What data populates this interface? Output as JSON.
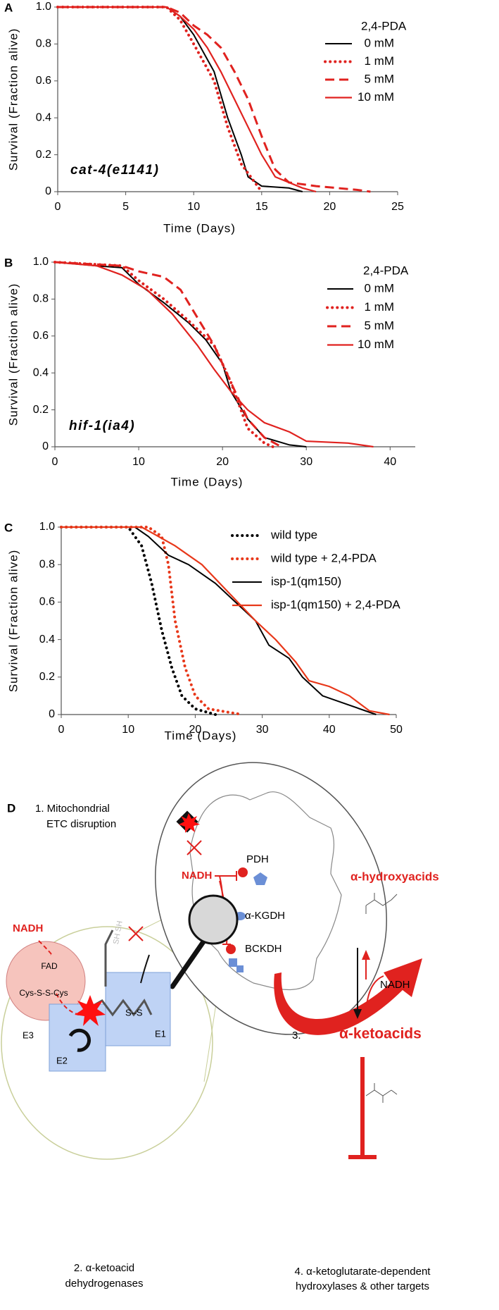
{
  "chart_data": [
    {
      "type": "line",
      "panel_label": "A",
      "x_label": "Time (Days)",
      "y_label": "Survival (Fraction alive)",
      "annotation": "cat-4(e1141)",
      "legend_title": "2,4-PDA",
      "xlim": [
        0,
        25
      ],
      "xticks": [
        0,
        5,
        10,
        15,
        20,
        25
      ],
      "ylim": [
        0,
        1
      ],
      "yticks": [
        0,
        0.2,
        0.4,
        0.6,
        0.8,
        {
          "value": 1,
          "label": "1.0"
        }
      ],
      "series": [
        {
          "name": "0 mM",
          "color": "#000000",
          "linestyle": "solid",
          "x": [
            0,
            8,
            9,
            10,
            11.5,
            12.5,
            13.5,
            14,
            15,
            17,
            18
          ],
          "values": [
            1,
            1,
            0.95,
            0.85,
            0.65,
            0.4,
            0.2,
            0.08,
            0.03,
            0.02,
            0
          ]
        },
        {
          "name": "1 mM",
          "color": "#e0221f",
          "linestyle": "dotted",
          "x": [
            0,
            8,
            9,
            10,
            11.5,
            12.5,
            13.5,
            14.5,
            15
          ],
          "values": [
            1,
            1,
            0.93,
            0.8,
            0.6,
            0.35,
            0.15,
            0.05,
            0
          ]
        },
        {
          "name": "5 mM",
          "color": "#e0221f",
          "linestyle": "dashed",
          "x": [
            0,
            8,
            9,
            10,
            11,
            12,
            13,
            14,
            15,
            16,
            17,
            19,
            22,
            23
          ],
          "values": [
            1,
            1,
            0.97,
            0.9,
            0.85,
            0.78,
            0.65,
            0.5,
            0.3,
            0.12,
            0.05,
            0.03,
            0.01,
            0
          ]
        },
        {
          "name": "10 mM",
          "color": "#e0221f",
          "linestyle": "solid",
          "x": [
            0,
            8,
            9,
            10,
            11,
            12,
            13,
            14,
            15,
            16,
            18,
            19
          ],
          "values": [
            1,
            1,
            0.95,
            0.88,
            0.78,
            0.65,
            0.5,
            0.35,
            0.2,
            0.08,
            0.02,
            0
          ]
        }
      ]
    },
    {
      "type": "line",
      "panel_label": "B",
      "x_label": "Time (Days)",
      "y_label": "Survival (Fraction alive)",
      "annotation": "hif-1(ia4)",
      "legend_title": "2,4-PDA",
      "xlim": [
        0,
        43
      ],
      "xticks": [
        0,
        10,
        20,
        30,
        40
      ],
      "ylim": [
        0,
        1
      ],
      "yticks": [
        0,
        0.2,
        0.4,
        0.6,
        0.8,
        {
          "value": 1,
          "label": "1.0"
        }
      ],
      "series": [
        {
          "name": "0 mM",
          "color": "#000000",
          "linestyle": "solid",
          "x": [
            0,
            5,
            8,
            10,
            13,
            16,
            18,
            20,
            21,
            23,
            25,
            28,
            30
          ],
          "values": [
            1,
            0.98,
            0.97,
            0.88,
            0.78,
            0.67,
            0.58,
            0.45,
            0.3,
            0.15,
            0.05,
            0.01,
            0
          ]
        },
        {
          "name": "1 mM",
          "color": "#e0221f",
          "linestyle": "dotted",
          "x": [
            0,
            8,
            10,
            13,
            16,
            19,
            21,
            23,
            25,
            26
          ],
          "values": [
            1,
            0.98,
            0.9,
            0.8,
            0.68,
            0.55,
            0.35,
            0.1,
            0.02,
            0
          ]
        },
        {
          "name": "5 mM",
          "color": "#e0221f",
          "linestyle": "dashed",
          "x": [
            0,
            8,
            10,
            13,
            15,
            17,
            19,
            21,
            23,
            25,
            27
          ],
          "values": [
            1,
            0.98,
            0.95,
            0.92,
            0.85,
            0.7,
            0.55,
            0.35,
            0.15,
            0.05,
            0
          ]
        },
        {
          "name": "10 mM",
          "color": "#e0221f",
          "linestyle": "solid",
          "x": [
            0,
            5,
            8,
            11,
            14,
            17,
            19,
            21,
            23,
            25,
            28,
            30,
            35,
            38
          ],
          "values": [
            1,
            0.98,
            0.93,
            0.85,
            0.72,
            0.55,
            0.42,
            0.3,
            0.2,
            0.13,
            0.08,
            0.03,
            0.02,
            0
          ]
        }
      ]
    },
    {
      "type": "line",
      "panel_label": "C",
      "x_label": "Time (Days)",
      "y_label": "Survival (Fraction alive)",
      "xlim": [
        0,
        50
      ],
      "xticks": [
        0,
        10,
        20,
        30,
        40,
        50
      ],
      "ylim": [
        0,
        1
      ],
      "yticks": [
        0,
        0.2,
        0.4,
        0.6,
        0.8,
        {
          "value": 1,
          "label": "1.0"
        }
      ],
      "series": [
        {
          "name": "wild type",
          "color": "#000000",
          "linestyle": "dotted",
          "x": [
            0,
            10,
            12,
            13.5,
            15,
            16.5,
            18,
            20,
            23
          ],
          "values": [
            1,
            1,
            0.9,
            0.7,
            0.45,
            0.25,
            0.1,
            0.03,
            0
          ]
        },
        {
          "name": "wild type + 2,4-PDA",
          "color": "#e8381a",
          "linestyle": "dotted",
          "x": [
            0,
            13,
            15,
            16,
            17,
            18.5,
            20,
            22,
            27
          ],
          "values": [
            1,
            1,
            0.95,
            0.8,
            0.5,
            0.25,
            0.1,
            0.03,
            0
          ]
        },
        {
          "name": "isp-1(qm150)",
          "color": "#000000",
          "linestyle": "solid",
          "x": [
            0,
            11,
            13,
            16,
            19,
            23,
            26,
            29,
            31,
            34,
            36,
            39,
            43,
            47
          ],
          "values": [
            1,
            1,
            0.95,
            0.85,
            0.8,
            0.7,
            0.6,
            0.5,
            0.37,
            0.3,
            0.2,
            0.1,
            0.05,
            0
          ]
        },
        {
          "name": "isp-1(qm150) + 2,4-PDA",
          "color": "#e8381a",
          "linestyle": "solid",
          "x": [
            0,
            12,
            14,
            17,
            21,
            25,
            29,
            32,
            35,
            37,
            40,
            43,
            46,
            49
          ],
          "values": [
            1,
            1,
            0.96,
            0.9,
            0.8,
            0.65,
            0.5,
            0.4,
            0.28,
            0.18,
            0.15,
            0.1,
            0.02,
            0
          ]
        }
      ]
    }
  ],
  "diagram": {
    "panel_label": "D",
    "step1": [
      "1. Mitochondrial",
      "ETC disruption"
    ],
    "step2": [
      "2. α-ketoacid",
      "dehydrogenases"
    ],
    "step3": "3.",
    "step4": [
      "4. α-ketoglutarate-dependent",
      "hydroxylases & other targets"
    ],
    "nadh_mito": "NADH",
    "pdh": "PDH",
    "akgdh": "α-KGDH",
    "bckdh": "BCKDH",
    "hydroxyacids": "α-hydroxyacids",
    "nadh_right": "NADH",
    "ketoacids": "α-ketoacids",
    "nadh_left": "NADH",
    "fad": "FAD",
    "cys": "Cys-S-S-Cys",
    "e1": "E1",
    "e2": "E2",
    "e3": "E3",
    "ss": "S–S",
    "sh": "SH SH"
  }
}
